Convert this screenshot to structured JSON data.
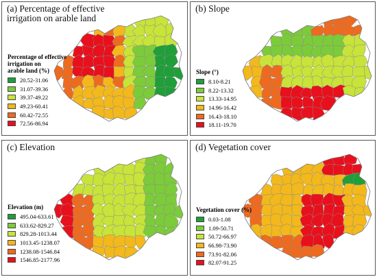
{
  "colors": {
    "class1": "#1f9e3a",
    "class2": "#7ccb3a",
    "class3": "#c8e33a",
    "class4": "#f2b81c",
    "class5": "#ee6a1f",
    "class6": "#e8101c",
    "boundary": "#8a8a8a"
  },
  "panels": [
    {
      "title": "(a) Percentage of effective\nirrigation on arable land",
      "legend_title": "Percentage of effective\nirrigation on\narable land (%)",
      "classes": [
        "20.52-31.06",
        "31.07-39.36",
        "39.37-49.22",
        "49.23-60.41",
        "60.42-72.55",
        "72.56-86.94"
      ]
    },
    {
      "title": "(b) Slope",
      "legend_title": "Slope (°)",
      "classes": [
        "8.10-8.21",
        "8.22-13.32",
        "13.33-14.95",
        "14.96-16.42",
        "16.43-18.10",
        "18.11-19.70"
      ]
    },
    {
      "title": "(c) Elevation",
      "legend_title": "Elevation (m)",
      "classes": [
        "495.04-633.61",
        "633.62-829.27",
        "829.28-1013.44",
        "1013.45-1238.07",
        "1238.08-1546.84",
        "1546.85-2177.96"
      ]
    },
    {
      "title": "(d) Vegetation cover",
      "legend_title": "Vegetation cover (%)",
      "classes": [
        "0.03-1.08",
        "1.09-50.71",
        "50.72-66.97",
        "66.98-73.90",
        "73.91-82.06",
        "82.07-91.25"
      ]
    }
  ]
}
